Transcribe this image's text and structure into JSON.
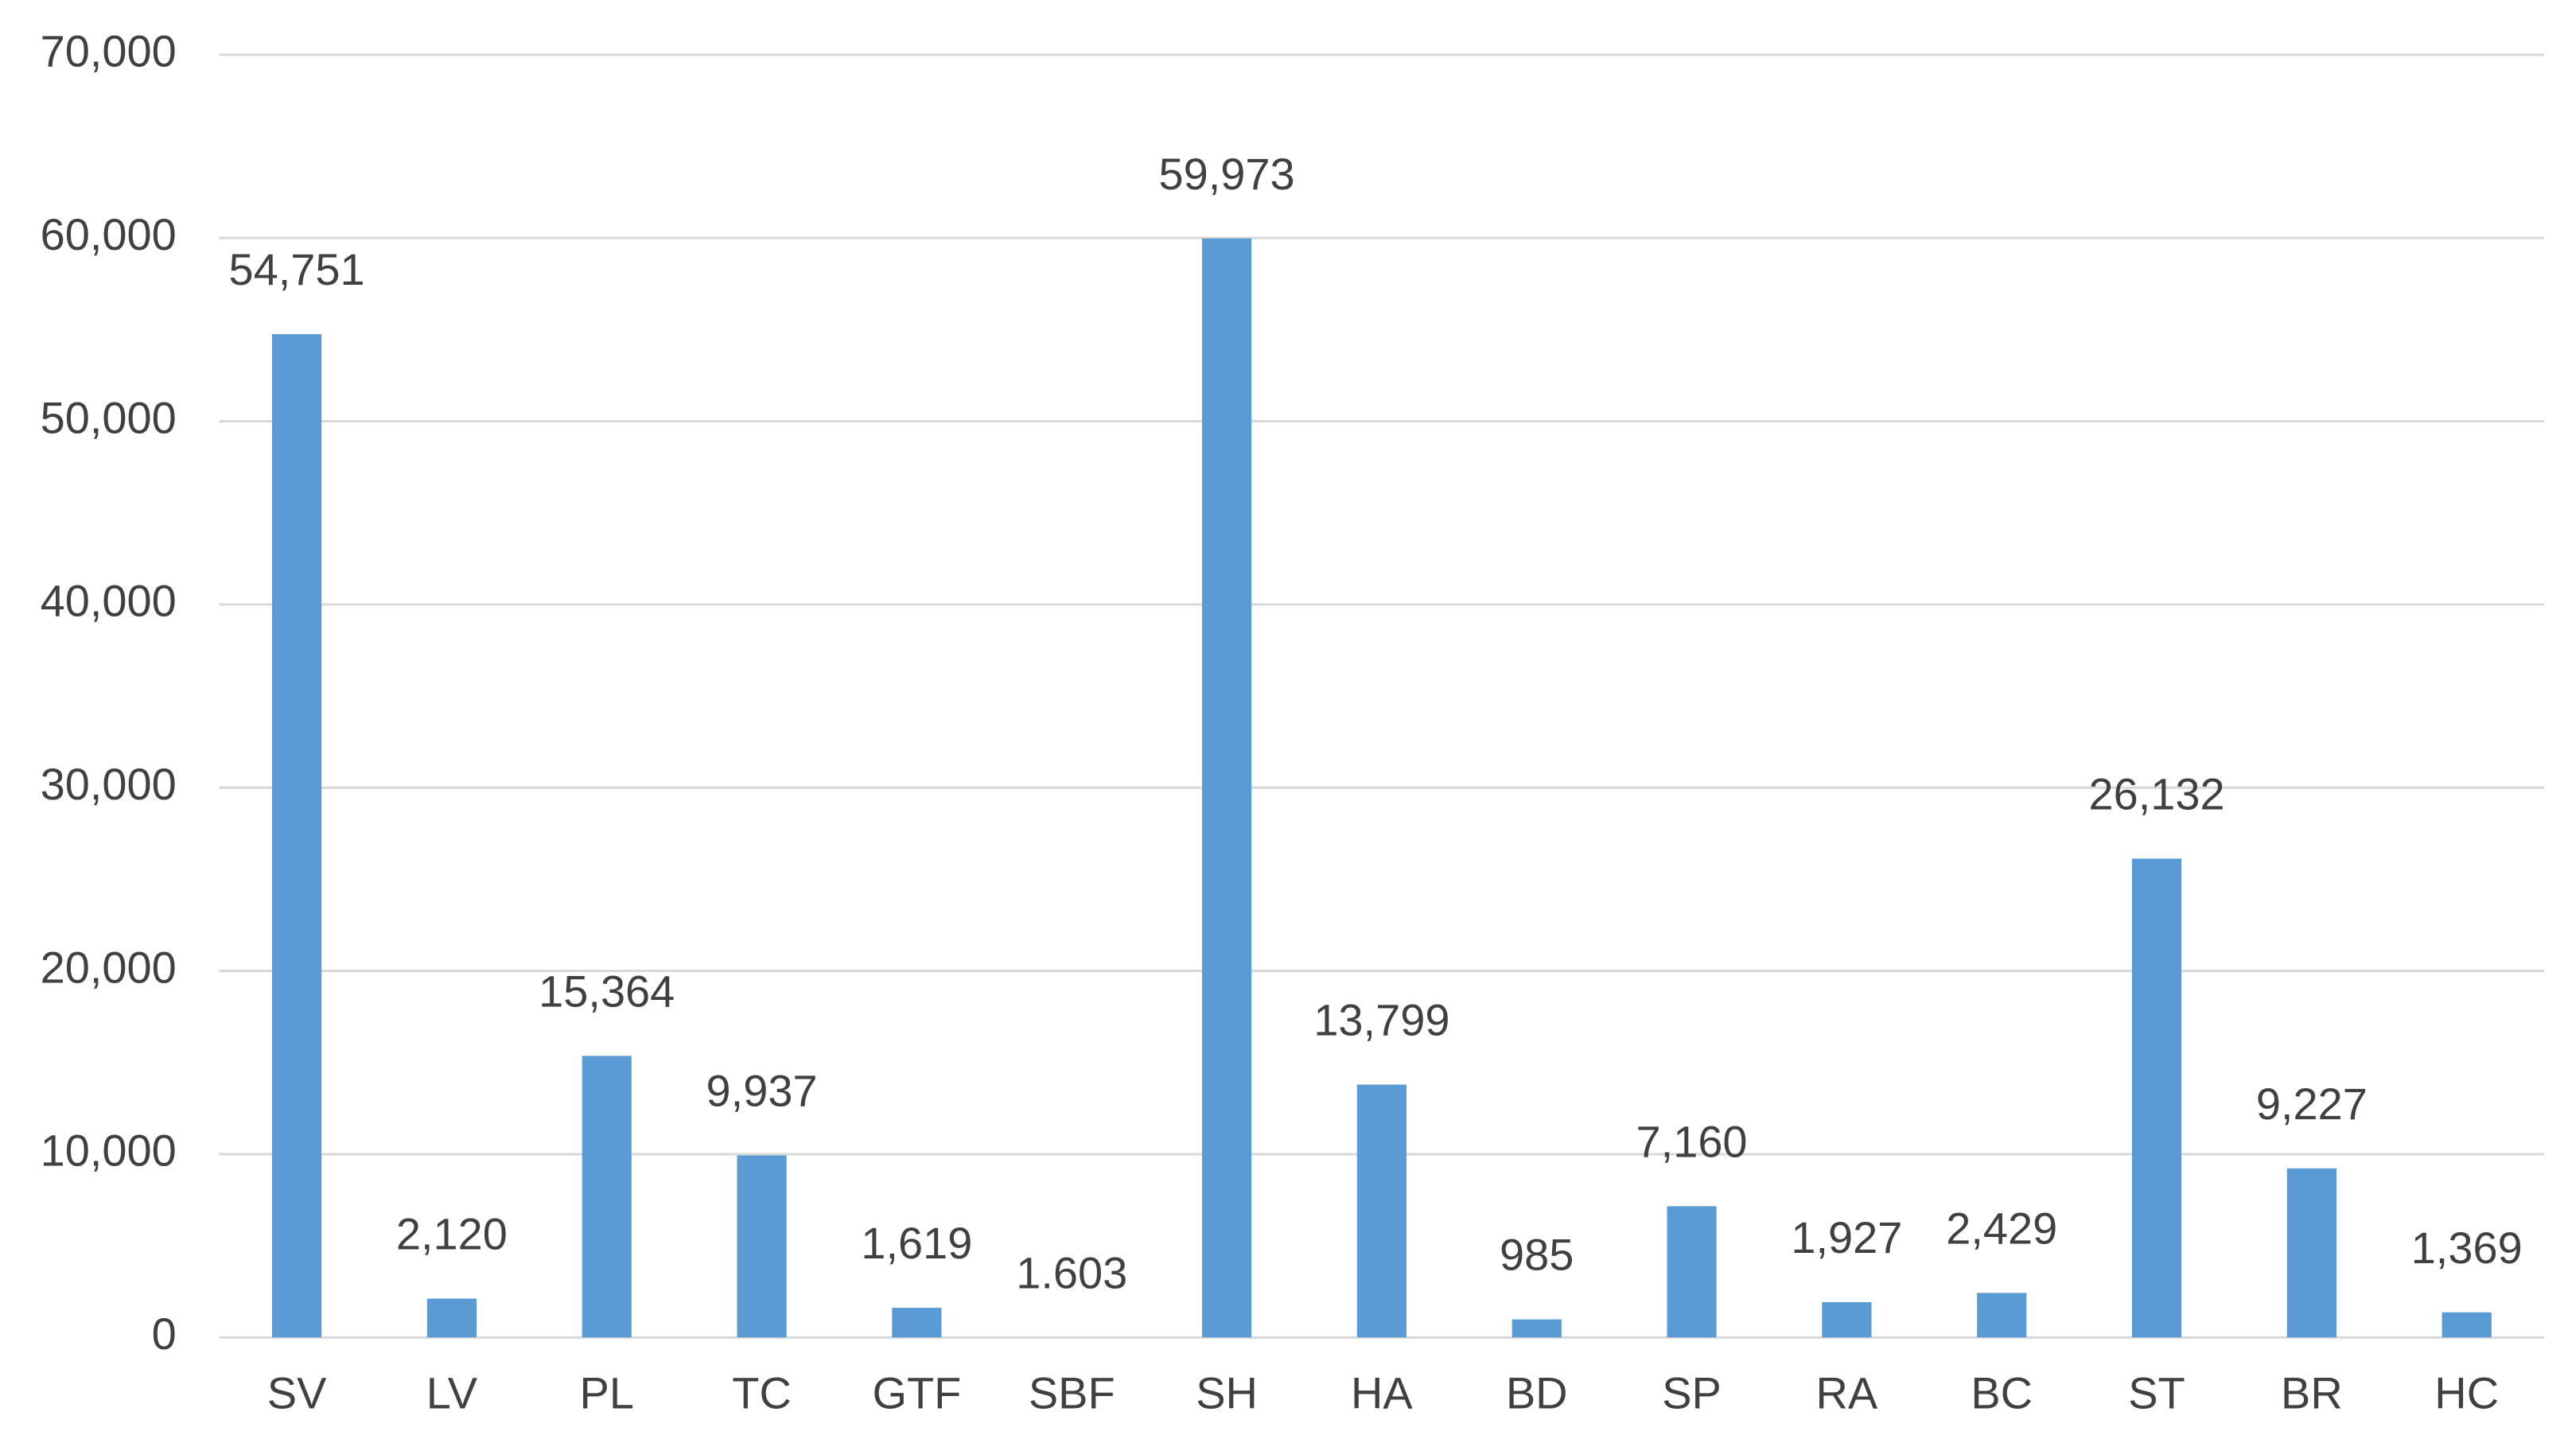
{
  "chart_data": {
    "type": "bar",
    "categories": [
      "SV",
      "LV",
      "PL",
      "TC",
      "GTF",
      "SBF",
      "SH",
      "HA",
      "BD",
      "SP",
      "RA",
      "BC",
      "ST",
      "BR",
      "HC"
    ],
    "values": [
      54751,
      2120,
      15364,
      9937,
      1619,
      1.603,
      59973,
      13799,
      985,
      7160,
      1927,
      2429,
      26132,
      9227,
      1369
    ],
    "value_labels": [
      "54,751",
      "2,120",
      "15,364",
      "9,937",
      "1,619",
      "1.603",
      "59,973",
      "13,799",
      "985",
      "7,160",
      "1,927",
      "2,429",
      "26,132",
      "9,227",
      "1,369"
    ],
    "color": "#5b9bd5",
    "ylim": [
      0,
      70000
    ],
    "yticks": [
      0,
      {
        "value": 10000,
        "label": "10,000"
      },
      {
        "value": 20000,
        "label": "20,000"
      },
      {
        "value": 30000,
        "label": "30,000"
      },
      {
        "value": 40000,
        "label": "40,000"
      },
      {
        "value": 50000,
        "label": "50,000"
      },
      {
        "value": 60000,
        "label": "60,000"
      },
      {
        "value": 70000,
        "label": "70,000"
      }
    ],
    "grid": true
  }
}
